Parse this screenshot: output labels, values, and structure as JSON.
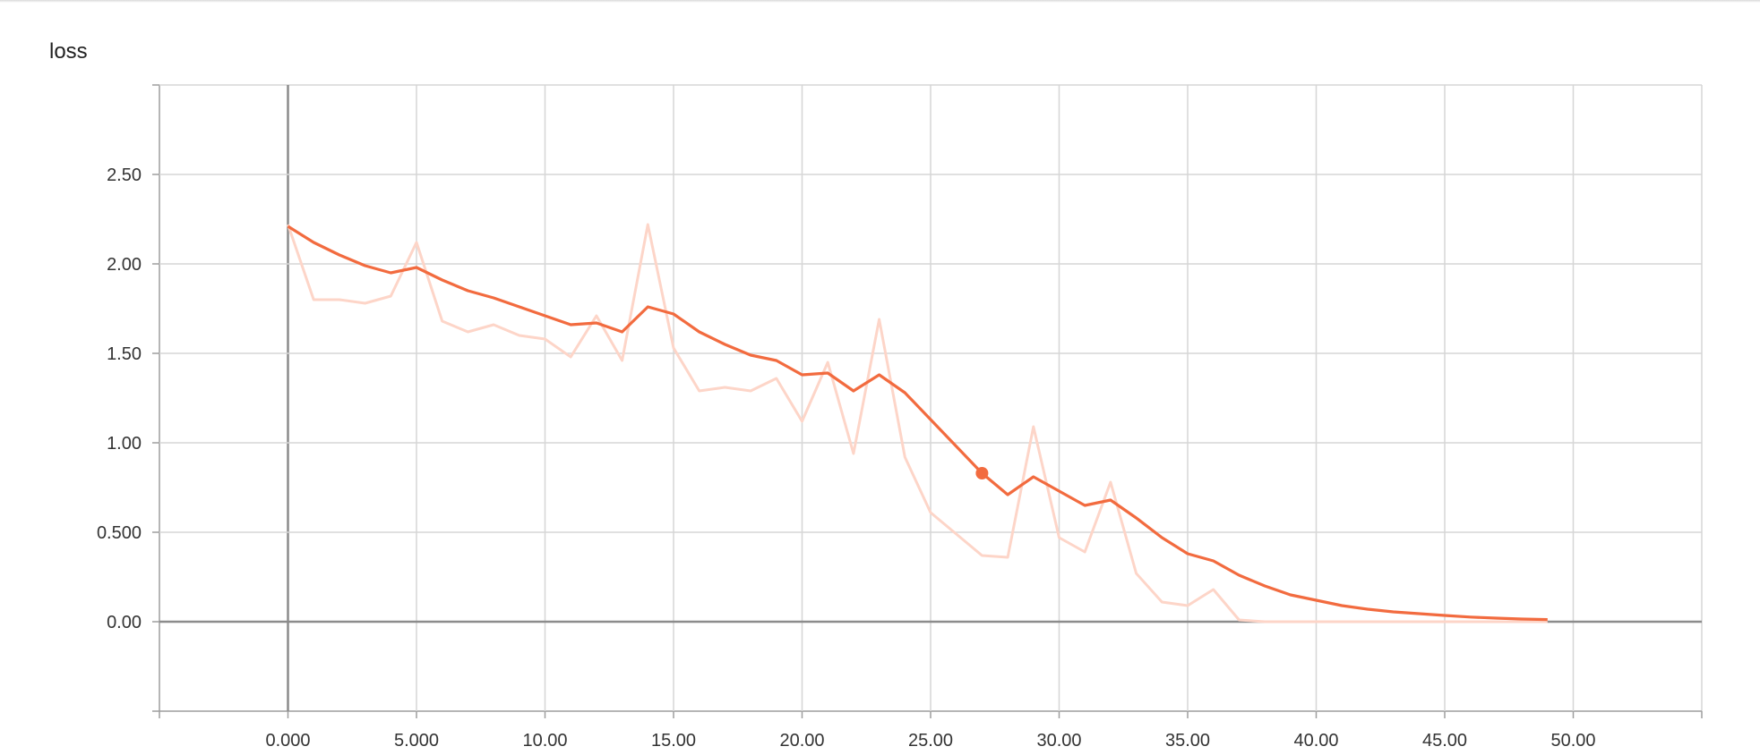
{
  "chart_data": {
    "type": "line",
    "title": "loss",
    "xlabel": "",
    "ylabel": "",
    "xlim": [
      -5,
      55
    ],
    "ylim": [
      -0.5,
      3.0
    ],
    "x_ticks": [
      0,
      5,
      10,
      15,
      20,
      25,
      30,
      35,
      40,
      45,
      50
    ],
    "x_tick_labels": [
      "0.000",
      "5.000",
      "10.00",
      "15.00",
      "20.00",
      "25.00",
      "30.00",
      "35.00",
      "40.00",
      "45.00",
      "50.00"
    ],
    "y_ticks": [
      0,
      0.5,
      1.0,
      1.5,
      2.0,
      2.5
    ],
    "y_tick_labels": [
      "0.00",
      "0.500",
      "1.00",
      "1.50",
      "2.00",
      "2.50"
    ],
    "grid": true,
    "x": [
      0,
      1,
      2,
      3,
      4,
      5,
      6,
      7,
      8,
      9,
      10,
      11,
      12,
      13,
      14,
      15,
      16,
      17,
      18,
      19,
      20,
      21,
      22,
      23,
      24,
      25,
      26,
      27,
      28,
      29,
      30,
      31,
      32,
      33,
      34,
      35,
      36,
      37,
      38,
      39,
      40,
      41,
      42,
      43,
      44,
      45,
      46,
      47,
      48,
      49
    ],
    "series": [
      {
        "color": "#fdd5c8",
        "values": [
          2.22,
          1.8,
          1.8,
          1.78,
          1.82,
          2.12,
          1.68,
          1.62,
          1.66,
          1.6,
          1.58,
          1.48,
          1.71,
          1.46,
          2.22,
          1.53,
          1.29,
          1.31,
          1.29,
          1.36,
          1.12,
          1.45,
          0.94,
          1.69,
          0.92,
          0.61,
          0.49,
          0.37,
          0.36,
          1.09,
          0.47,
          0.39,
          0.78,
          0.27,
          0.11,
          0.09,
          0.18,
          0.01,
          0.0,
          0.0,
          0.0,
          0.0,
          0.0,
          0.0,
          0.0,
          0.0,
          0.0,
          0.0,
          0.0,
          0.0
        ]
      },
      {
        "color": "#f26b3f",
        "values": [
          2.21,
          2.12,
          2.05,
          1.99,
          1.95,
          1.98,
          1.91,
          1.85,
          1.81,
          1.76,
          1.71,
          1.66,
          1.67,
          1.62,
          1.76,
          1.72,
          1.62,
          1.55,
          1.49,
          1.46,
          1.38,
          1.39,
          1.29,
          1.38,
          1.28,
          1.13,
          0.98,
          0.83,
          0.71,
          0.81,
          0.73,
          0.65,
          0.68,
          0.58,
          0.47,
          0.38,
          0.34,
          0.26,
          0.2,
          0.15,
          0.12,
          0.09,
          0.07,
          0.055,
          0.045,
          0.035,
          0.026,
          0.02,
          0.015,
          0.012
        ]
      }
    ],
    "highlight_point": {
      "x": 27,
      "y": 0.83,
      "color": "#f26b3f"
    }
  }
}
